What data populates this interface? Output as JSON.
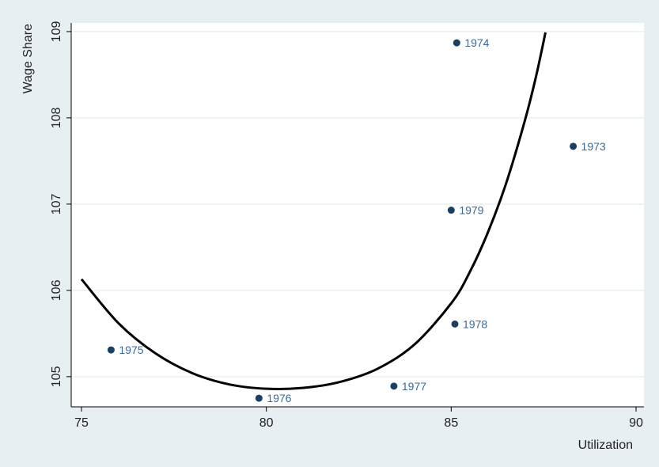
{
  "chart_data": {
    "type": "scatter",
    "title": "",
    "xlabel": "Utilization",
    "ylabel": "Wage Share",
    "xlim": [
      75,
      90
    ],
    "ylim": [
      104.65,
      109.1
    ],
    "xticks": [
      75,
      80,
      85,
      90
    ],
    "yticks": [
      105,
      106,
      107,
      108,
      109
    ],
    "grid": true,
    "points": [
      {
        "x": 88.3,
        "y": 107.67,
        "label": "1973"
      },
      {
        "x": 85.15,
        "y": 108.87,
        "label": "1974"
      },
      {
        "x": 75.8,
        "y": 105.31,
        "label": "1975"
      },
      {
        "x": 79.8,
        "y": 104.75,
        "label": "1976"
      },
      {
        "x": 83.45,
        "y": 104.89,
        "label": "1977"
      },
      {
        "x": 85.1,
        "y": 105.61,
        "label": "1978"
      },
      {
        "x": 85.0,
        "y": 106.93,
        "label": "1979"
      }
    ],
    "fitted_curve": [
      {
        "x": 75.0,
        "y": 106.13
      },
      {
        "x": 76.0,
        "y": 105.62
      },
      {
        "x": 77.0,
        "y": 105.27
      },
      {
        "x": 78.0,
        "y": 105.04
      },
      {
        "x": 79.0,
        "y": 104.91
      },
      {
        "x": 80.0,
        "y": 104.86
      },
      {
        "x": 81.0,
        "y": 104.87
      },
      {
        "x": 82.0,
        "y": 104.94
      },
      {
        "x": 83.0,
        "y": 105.09
      },
      {
        "x": 84.0,
        "y": 105.37
      },
      {
        "x": 85.0,
        "y": 105.85
      },
      {
        "x": 85.5,
        "y": 106.21
      },
      {
        "x": 86.0,
        "y": 106.68
      },
      {
        "x": 86.5,
        "y": 107.26
      },
      {
        "x": 87.0,
        "y": 107.98
      },
      {
        "x": 87.3,
        "y": 108.49
      },
      {
        "x": 87.55,
        "y": 108.99
      }
    ],
    "colors": {
      "outer_background": "#e8eff3",
      "plot_background": "#ffffff",
      "grid": "#eaf0f3",
      "marker": "#1b3f63",
      "marker_label": "#3a6a9a",
      "curve": "#000000",
      "axis": "#000000",
      "text": "#222222"
    }
  }
}
